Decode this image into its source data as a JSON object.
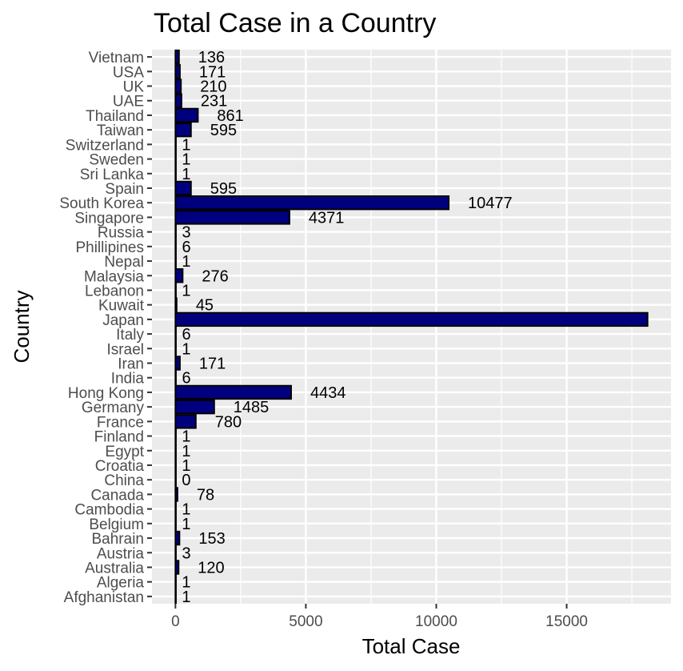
{
  "chart_data": {
    "type": "bar",
    "orientation": "horizontal",
    "title": "Total Case in a Country",
    "xlabel": "Total Case",
    "ylabel": "Country",
    "categories": [
      "Vietnam",
      "USA",
      "UK",
      "UAE",
      "Thailand",
      "Taiwan",
      "Switzerland",
      "Sweden",
      "Sri Lanka",
      "Spain",
      "South Korea",
      "Singapore",
      "Russia",
      "Phillipines",
      "Nepal",
      "Malaysia",
      "Lebanon",
      "Kuwait",
      "Japan",
      "Italy",
      "Israel",
      "Iran",
      "India",
      "Hong Kong",
      "Germany",
      "France",
      "Finland",
      "Egypt",
      "Croatia",
      "China",
      "Canada",
      "Cambodia",
      "Belgium",
      "Bahrain",
      "Austria",
      "Australia",
      "Algeria",
      "Afghanistan"
    ],
    "values": [
      136,
      171,
      210,
      231,
      861,
      595,
      1,
      1,
      1,
      595,
      10477,
      4371,
      3,
      6,
      1,
      276,
      1,
      45,
      18100,
      6,
      1,
      171,
      6,
      4434,
      1485,
      780,
      1,
      1,
      1,
      0,
      78,
      1,
      1,
      153,
      3,
      120,
      1,
      1
    ],
    "data_labels": [
      "136",
      "171",
      "210",
      "231",
      "861",
      "595",
      "1",
      "1",
      "1",
      "595",
      "10477",
      "4371",
      "3",
      "6",
      "1",
      "276",
      "1",
      "45",
      "",
      "6",
      "1",
      "171",
      "6",
      "4434",
      "1485",
      "780",
      "1",
      "1",
      "1",
      "0",
      "78",
      "1",
      "1",
      "153",
      "3",
      "120",
      "1",
      "1"
    ],
    "xlim": [
      -900,
      19000
    ],
    "xticks": [
      0,
      5000,
      10000,
      15000
    ],
    "xtick_labels": [
      "0",
      "5000",
      "10000",
      "15000"
    ],
    "grid": true,
    "legend": "none",
    "colors": {
      "bar_fill": "#00007f",
      "bar_stroke": "#000000",
      "panel_bg": "#ebebeb",
      "grid": "#ffffff"
    }
  }
}
